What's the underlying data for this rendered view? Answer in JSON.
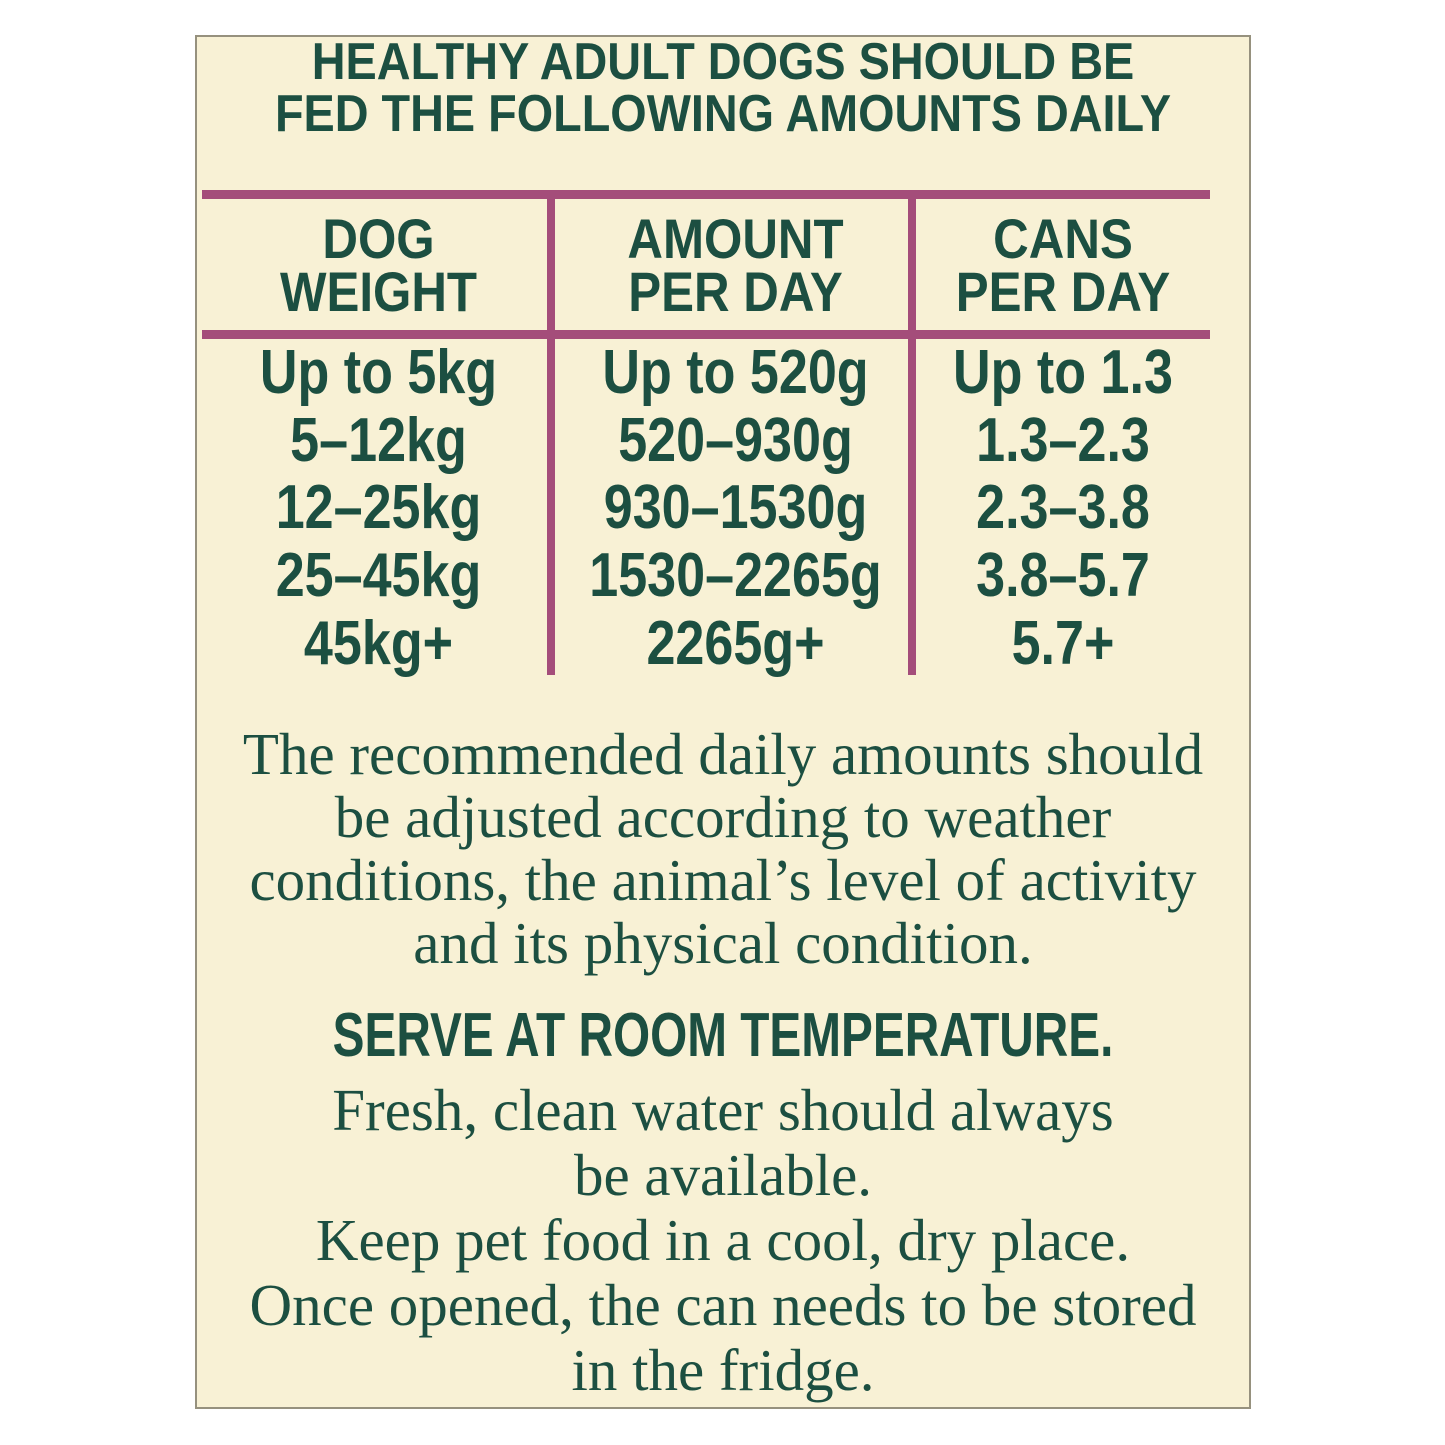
{
  "colors": {
    "page_background": "#ffffff",
    "panel_background": "#f8f1d5",
    "text_green": "#1c4f41",
    "rule_plum": "#a44d7a"
  },
  "headline": {
    "line1": "HEALTHY ADULT DOGS SHOULD BE",
    "line2": "FED THE FOLLOWING AMOUNTS DAILY"
  },
  "table": {
    "columns": [
      {
        "line1": "DOG",
        "line2": "WEIGHT"
      },
      {
        "line1": "AMOUNT",
        "line2": "PER DAY"
      },
      {
        "line1": "CANS",
        "line2": "PER DAY"
      }
    ],
    "rows": [
      [
        "Up to 5kg",
        "Up to 520g",
        "Up to 1.3"
      ],
      [
        "5–12kg",
        "520–930g",
        "1.3–2.3"
      ],
      [
        "12–25kg",
        "930–1530g",
        "2.3–3.8"
      ],
      [
        "25–45kg",
        "1530–2265g",
        "3.8–5.7"
      ],
      [
        "45kg+",
        "2265g+",
        "5.7+"
      ]
    ]
  },
  "paragraph1": {
    "line1": "The recommended daily amounts should",
    "line2": "be adjusted according to weather",
    "line3": "conditions, the animal’s level of activity",
    "line4": "and its physical condition."
  },
  "serve_note": "SERVE AT ROOM TEMPERATURE.",
  "paragraph2": {
    "line1": "Fresh, clean water should always",
    "line2": "be available.",
    "line3": "Keep pet food in a cool, dry place.",
    "line4": "Once opened, the can needs to be stored",
    "line5": "in the fridge."
  }
}
